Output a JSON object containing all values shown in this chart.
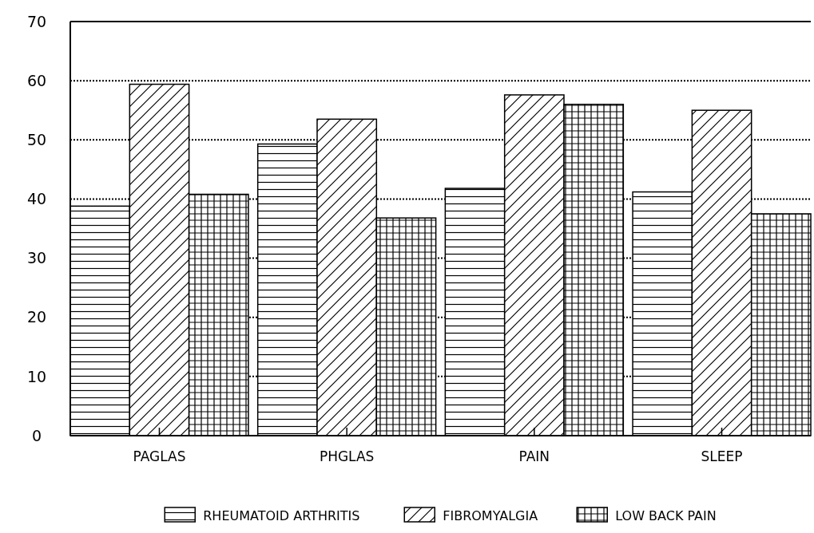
{
  "chart_data": {
    "type": "bar",
    "categories": [
      "PAGLAS",
      "PHGLAS",
      "PAIN",
      "SLEEP"
    ],
    "series": [
      {
        "name": "RHEUMATOID ARTHRITIS",
        "color": "#000000",
        "values": [
          38.8,
          49.3,
          41.8,
          41.2
        ]
      },
      {
        "name": "FIBROMYALGIA",
        "color": "#000000",
        "values": [
          59.4,
          53.5,
          57.6,
          55.0
        ]
      },
      {
        "name": "LOW BACK PAIN",
        "color": "#000000",
        "values": [
          40.8,
          36.8,
          56.0,
          37.5
        ]
      }
    ],
    "ylim": [
      0,
      70
    ],
    "yticks": [
      0,
      10,
      20,
      30,
      40,
      50,
      60,
      70
    ],
    "grid": "y",
    "legend": "bottom"
  }
}
